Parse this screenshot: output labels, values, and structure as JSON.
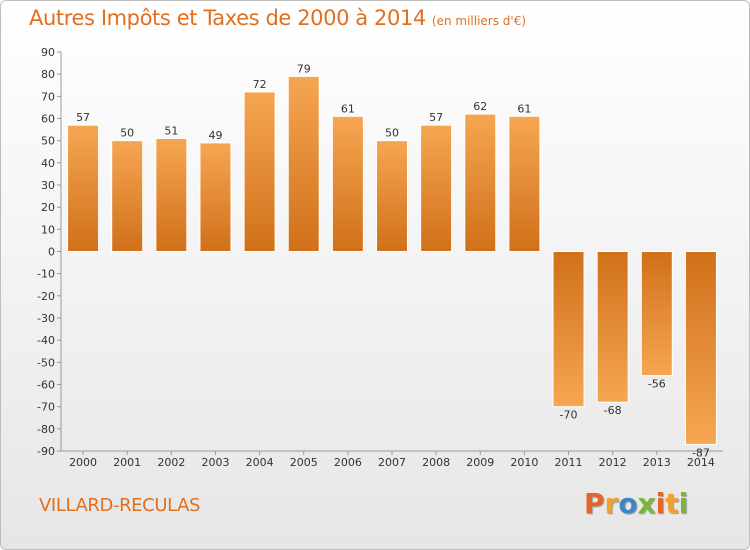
{
  "title": "Autres Impôts et Taxes de 2000 à 2014",
  "subtitle": "(en milliers d'€)",
  "place": "VILLARD-RECULAS",
  "logo": {
    "letters": [
      "P",
      "r",
      "o",
      "x",
      "i",
      "t",
      "i"
    ],
    "colors": [
      "#e8632a",
      "#f0a22e",
      "#3d86c8",
      "#7ab53c",
      "#e8632a",
      "#f0a22e",
      "#7ab53c"
    ]
  },
  "colors": {
    "bar_top": "#f4a24e",
    "bar_bottom": "#d2731c",
    "accent": "#e06f20"
  },
  "chart_data": {
    "type": "bar",
    "title": "Autres Impôts et Taxes de 2000 à 2014",
    "subtitle": "(en milliers d'€)",
    "categories": [
      "2000",
      "2001",
      "2002",
      "2003",
      "2004",
      "2005",
      "2006",
      "2007",
      "2008",
      "2009",
      "2010",
      "2011",
      "2012",
      "2013",
      "2014"
    ],
    "values": [
      57,
      50,
      51,
      49,
      72,
      79,
      61,
      50,
      57,
      62,
      61,
      -70,
      -68,
      -56,
      -87
    ],
    "value_labels": [
      "57",
      "50",
      "51",
      "49",
      "72",
      "79",
      "61",
      "50",
      "57",
      "62",
      "61",
      "-70",
      "-68",
      "-56",
      "-87"
    ],
    "yticks": [
      90,
      80,
      70,
      60,
      50,
      40,
      30,
      20,
      10,
      0,
      -10,
      -20,
      -30,
      -40,
      -50,
      -60,
      -70,
      -80,
      -90
    ],
    "ylim": [
      -90,
      90
    ],
    "grid": false,
    "legend": "none"
  }
}
